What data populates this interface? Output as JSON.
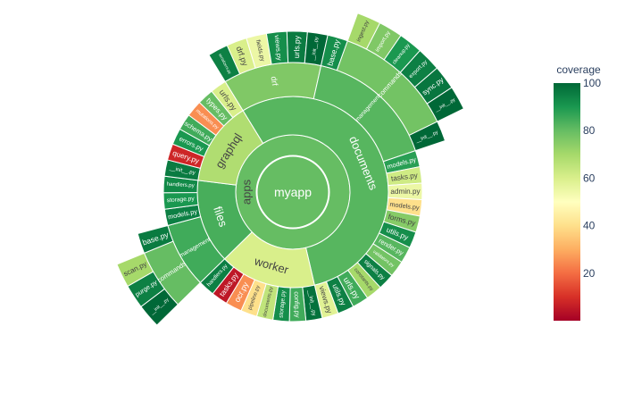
{
  "chart_data": {
    "type": "sunburst",
    "colorbar": {
      "title": "coverage",
      "colorscale": "RdYlGn",
      "range": [
        0,
        100
      ],
      "ticks": [
        20,
        40,
        60,
        80,
        100
      ]
    },
    "colors": {
      "scale": [
        "#a50026",
        "#d73027",
        "#f46d43",
        "#fdae61",
        "#fee08b",
        "#ffffbf",
        "#d9ef8b",
        "#a6d96a",
        "#66bd63",
        "#1a9850",
        "#006837"
      ]
    },
    "root": {
      "label": "myapp",
      "value": 80,
      "children": [
        {
          "label": "apps",
          "value": 80,
          "children": [
            {
              "label": "documents",
              "value": 82,
              "children": [
                {
                  "label": "drf",
                  "value": 76,
                  "children": [
                    {
                      "label": "serializers.py",
                      "value": 95
                    },
                    {
                      "label": "drf.py",
                      "value": 60
                    },
                    {
                      "label": "fields.py",
                      "value": 55
                    },
                    {
                      "label": "views.py",
                      "value": 92
                    },
                    {
                      "label": "urls.py",
                      "value": 96
                    },
                    {
                      "label": "__init__.py",
                      "value": 100
                    }
                  ]
                },
                {
                  "label": "management",
                  "value": 82,
                  "children": [
                    {
                      "label": "base.py",
                      "value": 92
                    },
                    {
                      "label": "commands",
                      "value": 78,
                      "children": [
                        {
                          "label": "ingest.py",
                          "value": 70
                        },
                        {
                          "label": "import.py",
                          "value": 76
                        },
                        {
                          "label": "cleanup.py",
                          "value": 90
                        },
                        {
                          "label": "export.py",
                          "value": 95
                        },
                        {
                          "label": "sync.py",
                          "value": 97
                        },
                        {
                          "label": "__init__.py",
                          "value": 100
                        }
                      ]
                    },
                    {
                      "label": "__init__.py",
                      "value": 100
                    }
                  ]
                },
                {
                  "label": "models.py",
                  "value": 88
                },
                {
                  "label": "tasks.py",
                  "value": 62
                },
                {
                  "label": "admin.py",
                  "value": 55
                },
                {
                  "label": "models.py",
                  "value": 40
                },
                {
                  "label": "forms.py",
                  "value": 75
                },
                {
                  "label": "utils.py",
                  "value": 92
                },
                {
                  "label": "render.py",
                  "value": 82
                },
                {
                  "label": "validators.py",
                  "value": 78
                },
                {
                  "label": "signals.py",
                  "value": 95
                },
                {
                  "label": "constants.py",
                  "value": 70
                },
                {
                  "label": "urls.py",
                  "value": 85
                },
                {
                  "label": "utils.py",
                  "value": 95
                },
                {
                  "label": "views.py",
                  "value": 58
                }
              ]
            },
            {
              "label": "worker",
              "value": 60,
              "children": [
                {
                  "label": "__init__.py",
                  "value": 98
                },
                {
                  "label": "config.py",
                  "value": 85
                },
                {
                  "label": "storage.py",
                  "value": 92
                },
                {
                  "label": "documents.py",
                  "value": 65
                },
                {
                  "label": "pipeline.py",
                  "value": 40
                },
                {
                  "label": "ocr.py",
                  "value": 25
                },
                {
                  "label": "tasks.py",
                  "value": 5
                },
                {
                  "label": "handlers.py",
                  "value": 95
                }
              ]
            },
            {
              "label": "files",
              "value": 84,
              "children": [
                {
                  "label": "management",
                  "value": 85,
                  "children": [
                    {
                      "label": "commands",
                      "value": 80,
                      "children": [
                        {
                          "label": "__init__.py",
                          "value": 100
                        },
                        {
                          "label": "purge.py",
                          "value": 95
                        },
                        {
                          "label": "scan.py",
                          "value": 70
                        }
                      ]
                    },
                    {
                      "label": "base.py",
                      "value": 96
                    }
                  ]
                },
                {
                  "label": "models.py",
                  "value": 95
                },
                {
                  "label": "storage.py",
                  "value": 90
                },
                {
                  "label": "handlers.py",
                  "value": 93
                }
              ]
            },
            {
              "label": "graphql",
              "value": 68,
              "children": [
                {
                  "label": "__init__.py",
                  "value": 96
                },
                {
                  "label": "query.py",
                  "value": 8
                },
                {
                  "label": "errors.py",
                  "value": 90
                },
                {
                  "label": "schema.py",
                  "value": 85
                },
                {
                  "label": "mutations.py",
                  "value": 25
                },
                {
                  "label": "types.py",
                  "value": 80
                },
                {
                  "label": "urls.py",
                  "value": 60
                }
              ]
            }
          ]
        }
      ]
    }
  }
}
